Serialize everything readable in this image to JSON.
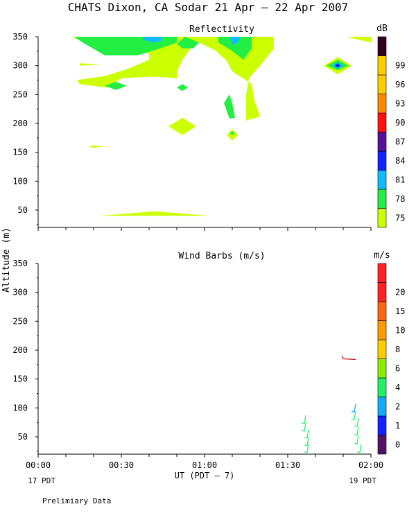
{
  "page": {
    "title": "CHATS Dixon, CA  Sodar  21 Apr – 22 Apr 2007",
    "note": "Prelimiary Data"
  },
  "chart_data": [
    {
      "type": "heatmap",
      "title": "Reflectivity",
      "ylabel": "Altitude (m)",
      "colorbar_unit": "dB",
      "ylim": [
        20,
        350
      ],
      "yticks": [
        50,
        100,
        150,
        200,
        250,
        300,
        350
      ],
      "xlim": [
        0,
        120
      ],
      "colorbar": {
        "levels": [
          "75",
          "78",
          "81",
          "84",
          "87",
          "90",
          "93",
          "96",
          "99",
          ""
        ],
        "colors": [
          "#ccff00",
          "#22ee44",
          "#11bbff",
          "#1122ff",
          "#551199",
          "#ff1111",
          "#ff8800",
          "#ffcc00",
          "#ffcc00",
          "#330022"
        ]
      },
      "contours": [
        {
          "level": 75,
          "points": [
            [
              12,
              350
            ],
            [
              85,
              350
            ],
            [
              85,
              330
            ],
            [
              80,
              300
            ],
            [
              76,
              278
            ],
            [
              75,
              250
            ],
            [
              75,
              205
            ],
            [
              80,
              212
            ],
            [
              78,
              240
            ],
            [
              77,
              268
            ],
            [
              70,
              290
            ],
            [
              68,
              308
            ],
            [
              64,
              326
            ],
            [
              58,
              340
            ],
            [
              55,
              330
            ],
            [
              52,
              310
            ],
            [
              50,
              290
            ],
            [
              50,
              278
            ],
            [
              42,
              281
            ],
            [
              37,
              280
            ],
            [
              30,
              278
            ],
            [
              25,
              262
            ],
            [
              18,
              266
            ],
            [
              15,
              268
            ],
            [
              14,
              275
            ],
            [
              24,
              282
            ],
            [
              32,
              294
            ],
            [
              40,
              310
            ],
            [
              40,
              320
            ],
            [
              34,
              330
            ],
            [
              24,
              338
            ],
            [
              16,
              342
            ]
          ]
        },
        {
          "level": 75,
          "points": [
            [
              15,
              300
            ],
            [
              23,
              302
            ],
            [
              15,
              304
            ]
          ]
        },
        {
          "level": 75,
          "points": [
            [
              52,
              210
            ],
            [
              57,
              195
            ],
            [
              52,
              180
            ],
            [
              47,
              195
            ]
          ]
        },
        {
          "level": 75,
          "points": [
            [
              70,
              190
            ],
            [
              72,
              180
            ],
            [
              70,
              170
            ],
            [
              68,
              180
            ]
          ]
        },
        {
          "level": 75,
          "points": [
            [
              20,
              162
            ],
            [
              24,
              160
            ],
            [
              20,
              158
            ],
            [
              18,
              160
            ]
          ]
        },
        {
          "level": 75,
          "points": [
            [
              22,
              40
            ],
            [
              42,
              48
            ],
            [
              62,
              40
            ]
          ]
        },
        {
          "level": 75,
          "points": [
            [
              103,
              300
            ],
            [
              108,
              315
            ],
            [
              113,
              300
            ],
            [
              108,
              285
            ]
          ]
        },
        {
          "level": 75,
          "points": [
            [
              111,
              350
            ],
            [
              120,
              350
            ],
            [
              120,
              340
            ]
          ]
        },
        {
          "level": 78,
          "points": [
            [
              13,
              350
            ],
            [
              50,
              350
            ],
            [
              50,
              340
            ],
            [
              44,
              330
            ],
            [
              36,
              318
            ],
            [
              24,
              318
            ],
            [
              16,
              340
            ]
          ]
        },
        {
          "level": 78,
          "points": [
            [
              53,
              350
            ],
            [
              58,
              340
            ],
            [
              56,
              330
            ],
            [
              52,
              330
            ],
            [
              50,
              338
            ]
          ]
        },
        {
          "level": 78,
          "points": [
            [
              65,
              350
            ],
            [
              77,
              350
            ],
            [
              77,
              330
            ],
            [
              74,
              310
            ],
            [
              70,
              325
            ],
            [
              65,
              340
            ]
          ]
        },
        {
          "level": 78,
          "points": [
            [
              28,
              272
            ],
            [
              32,
              265
            ],
            [
              28,
              258
            ],
            [
              24,
              265
            ]
          ]
        },
        {
          "level": 78,
          "points": [
            [
              52,
              268
            ],
            [
              54,
              262
            ],
            [
              52,
              256
            ],
            [
              50,
              262
            ]
          ]
        },
        {
          "level": 78,
          "points": [
            [
              69,
              250
            ],
            [
              70,
              235
            ],
            [
              71,
              210
            ],
            [
              69,
              208
            ],
            [
              67,
              235
            ]
          ]
        },
        {
          "level": 78,
          "points": [
            [
              70,
              186
            ],
            [
              71,
              183
            ],
            [
              70,
              180
            ],
            [
              69,
              183
            ]
          ]
        },
        {
          "level": 78,
          "points": [
            [
              104,
              300
            ],
            [
              108,
              310
            ],
            [
              112,
              300
            ],
            [
              108,
              292
            ]
          ]
        },
        {
          "level": 81,
          "points": [
            [
              38,
              350
            ],
            [
              45,
              350
            ],
            [
              44,
              342
            ],
            [
              41,
              340
            ],
            [
              38,
              345
            ]
          ]
        },
        {
          "level": 81,
          "points": [
            [
              69,
              350
            ],
            [
              73,
              350
            ],
            [
              72,
              340
            ],
            [
              70,
              336
            ]
          ]
        },
        {
          "level": 81,
          "points": [
            [
              106,
              300
            ],
            [
              108,
              306
            ],
            [
              110,
              300
            ],
            [
              108,
              295
            ]
          ]
        },
        {
          "level": 84,
          "points": [
            [
              107,
              300
            ],
            [
              108,
              304
            ],
            [
              109,
              300
            ],
            [
              108,
              297
            ]
          ]
        }
      ]
    },
    {
      "type": "scatter",
      "title": "Wind Barbs (m/s)",
      "xlabel": "UT  (PDT – 7)",
      "colorbar_unit": "m/s",
      "ylim": [
        20,
        350
      ],
      "yticks": [
        50,
        100,
        150,
        200,
        250,
        300,
        350
      ],
      "xticks": [
        "00:00",
        "00:30",
        "01:00",
        "01:30",
        "02:00"
      ],
      "xlim": [
        0,
        120
      ],
      "x_sub_left": "17 PDT",
      "x_sub_right": "19 PDT",
      "colorbar": {
        "levels": [
          "0",
          "1",
          "2",
          "4",
          "6",
          "8",
          "10",
          "15",
          "20",
          ""
        ],
        "colors": [
          "#551166",
          "#1122ff",
          "#11aaff",
          "#22ee66",
          "#88ee00",
          "#ffcc00",
          "#ff9900",
          "#ff6611",
          "#ff2222",
          "#ff2222"
        ]
      },
      "barbs": [
        {
          "x": 96,
          "y": 80,
          "color": "#22ee66"
        },
        {
          "x": 96,
          "y": 67,
          "color": "#22ee66"
        },
        {
          "x": 97,
          "y": 55,
          "color": "#22ee66"
        },
        {
          "x": 97,
          "y": 42,
          "color": "#22ee66"
        },
        {
          "x": 97,
          "y": 30,
          "color": "#22ee66"
        },
        {
          "x": 114,
          "y": 100,
          "color": "#11aaff"
        },
        {
          "x": 114,
          "y": 87,
          "color": "#22ee66"
        },
        {
          "x": 115,
          "y": 75,
          "color": "#22ee66"
        },
        {
          "x": 115,
          "y": 60,
          "color": "#22ee66"
        },
        {
          "x": 115,
          "y": 45,
          "color": "#22ee66"
        },
        {
          "x": 116,
          "y": 30,
          "color": "#22ee66"
        },
        {
          "x": 113,
          "y": 185,
          "color": "#cc1111"
        }
      ]
    }
  ]
}
